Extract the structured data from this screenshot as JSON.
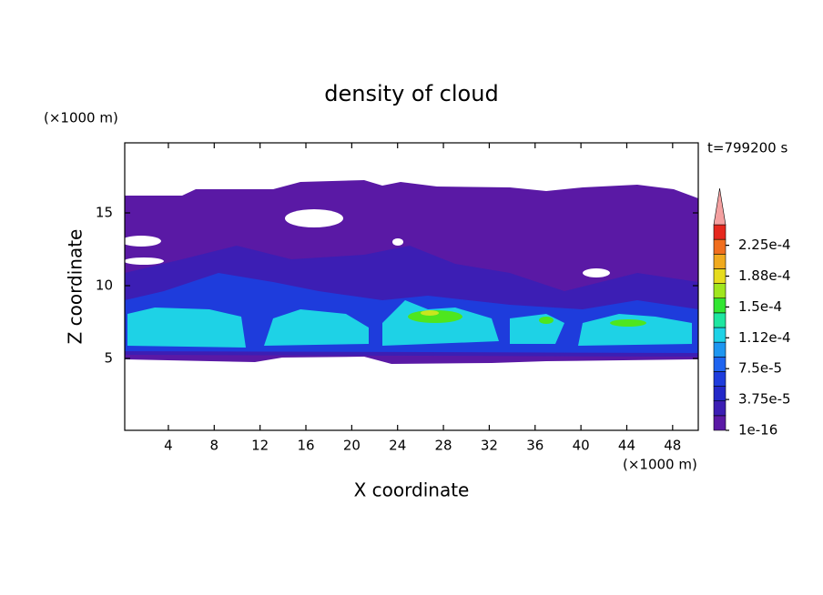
{
  "chart_data": {
    "type": "contour",
    "title": "density of cloud",
    "time_label": "t=799200 s",
    "x_label": "X coordinate",
    "x_unit": "(×1000 m)",
    "y_label": "Z coordinate",
    "y_unit": "(×1000 m)",
    "xlim": [
      0,
      50
    ],
    "xticks": [
      4,
      8,
      12,
      16,
      20,
      24,
      28,
      32,
      36,
      40,
      44,
      48
    ],
    "ylim": [
      0,
      20
    ],
    "yticks": [
      5,
      10,
      15
    ],
    "colorbar": {
      "lim": [
        1e-16,
        0.00025
      ],
      "ticks": [
        {
          "value": 1e-16,
          "label": "1e-16"
        },
        {
          "value": 3.75e-05,
          "label": "3.75e-5"
        },
        {
          "value": 7.5e-05,
          "label": "7.5e-5"
        },
        {
          "value": 0.0001125,
          "label": "1.12e-4"
        },
        {
          "value": 0.00015,
          "label": "1.5e-4"
        },
        {
          "value": 0.0001875,
          "label": "1.88e-4"
        },
        {
          "value": 0.000225,
          "label": "2.25e-4"
        }
      ],
      "colors": [
        "#5a19a5",
        "#3c1eb4",
        "#2328c8",
        "#1e3cdc",
        "#1e64f0",
        "#1e96f0",
        "#1ed2e6",
        "#1ee6a0",
        "#32e632",
        "#a0e61e",
        "#e6dc1e",
        "#f0aa1e",
        "#f06e1e",
        "#e6281e"
      ],
      "extend": "max",
      "extend_color": "#f4a0a0"
    }
  }
}
